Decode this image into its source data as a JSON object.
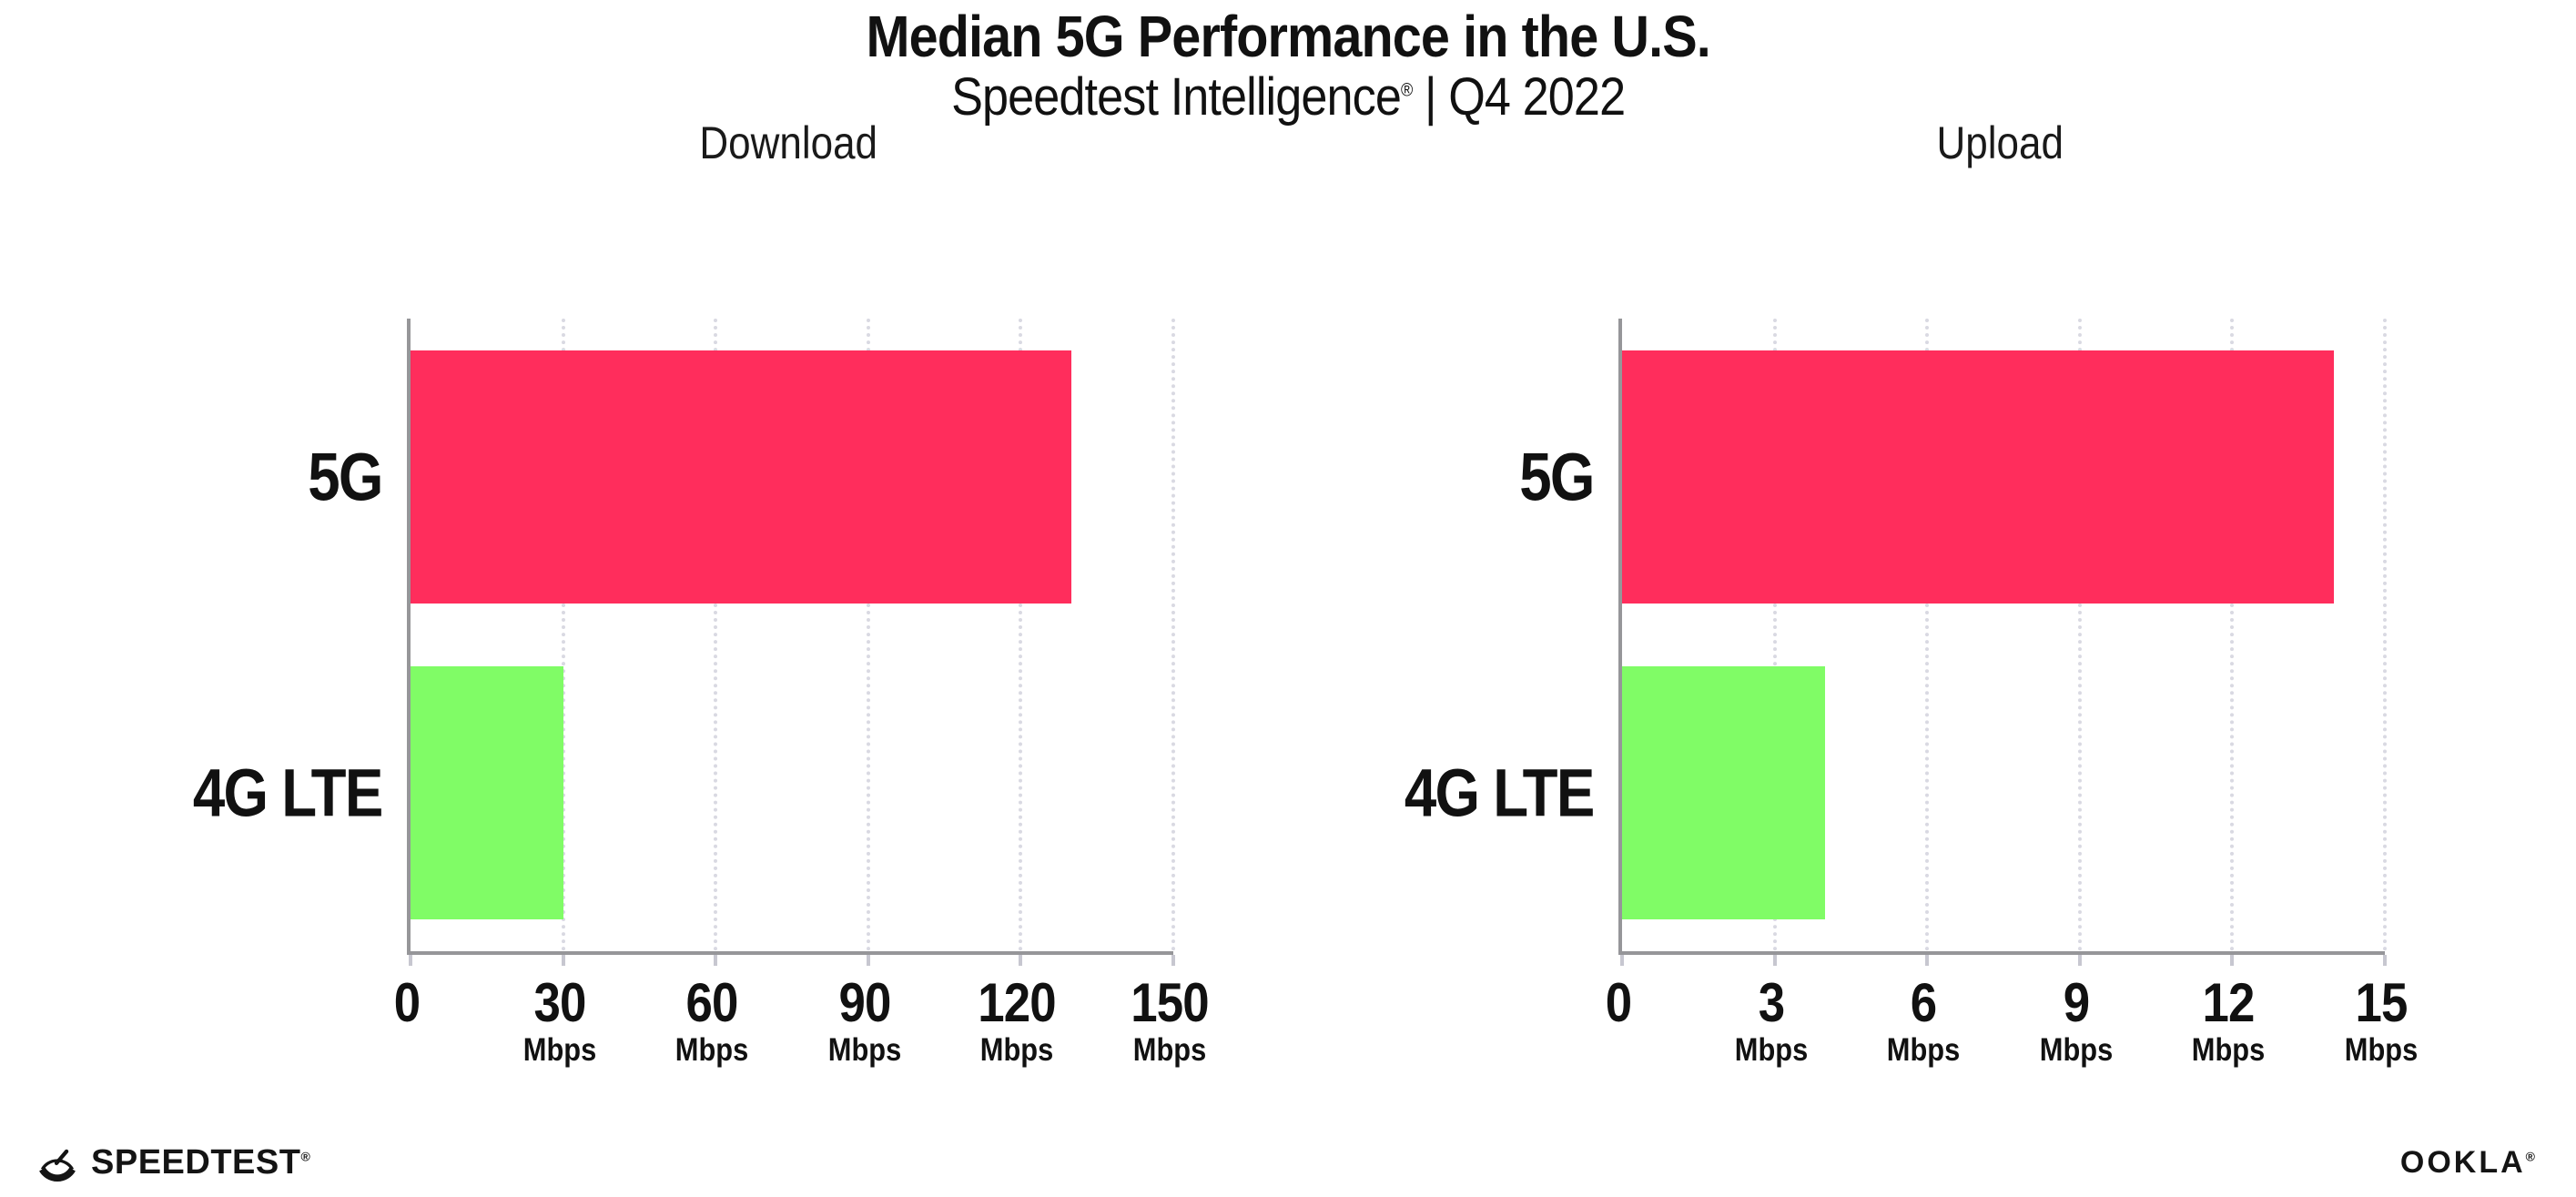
{
  "header": {
    "title": "Median 5G Performance in the U.S.",
    "subtitle_product": "Speedtest Intelligence",
    "subtitle_reg_mark": "®",
    "subtitle_separator": " | ",
    "subtitle_period": "Q4 2022"
  },
  "chart_data": [
    {
      "type": "bar",
      "orientation": "horizontal",
      "title": "Download",
      "categories": [
        "5G",
        "4G LTE"
      ],
      "values": [
        130,
        30
      ],
      "value_unit": "Mbps",
      "xlim": [
        0,
        150
      ],
      "xticks": [
        0,
        30,
        60,
        90,
        120,
        150
      ],
      "tick_unit_label": "Mbps",
      "bar_colors": [
        "#FF2D5C",
        "#80FC66"
      ],
      "grid": "dotted-vertical",
      "legend": "none"
    },
    {
      "type": "bar",
      "orientation": "horizontal",
      "title": "Upload",
      "categories": [
        "5G",
        "4G LTE"
      ],
      "values": [
        14,
        4
      ],
      "value_unit": "Mbps",
      "xlim": [
        0,
        15
      ],
      "xticks": [
        0,
        3,
        6,
        9,
        12,
        15
      ],
      "tick_unit_label": "Mbps",
      "bar_colors": [
        "#FF2D5C",
        "#80FC66"
      ],
      "grid": "dotted-vertical",
      "legend": "none"
    }
  ],
  "footer": {
    "speedtest_logo_text": "SPEEDTEST",
    "speedtest_trademark": "®",
    "speedtest_icon": "gauge-icon",
    "ookla_logo_text": "OOKLA",
    "ookla_trademark": "®"
  },
  "colors": {
    "bar_5g": "#FF2D5C",
    "bar_4g_lte": "#80FC66",
    "axis": "#969699",
    "gridline": "#D9D9E2",
    "text": "#111111",
    "background": "#FFFFFF"
  }
}
